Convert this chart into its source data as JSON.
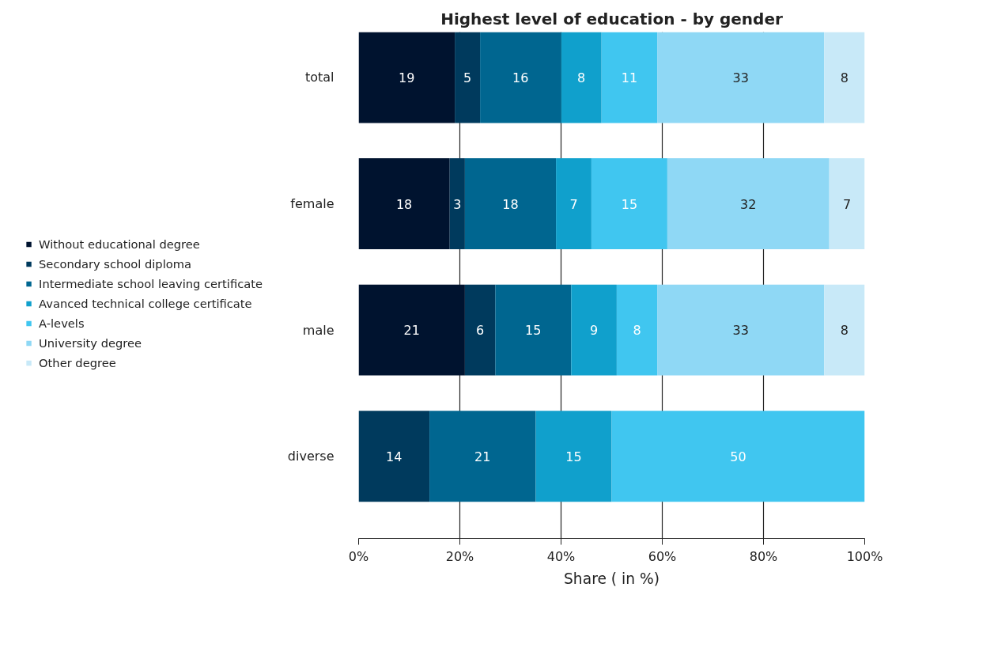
{
  "chart_data": {
    "type": "bar",
    "orientation": "horizontal",
    "stacked": true,
    "title": "Highest level of education - by gender",
    "xlabel": "Share ( in %)",
    "categories": [
      "total",
      "female",
      "male",
      "diverse"
    ],
    "series": [
      {
        "name": "Without educational degree",
        "color": "#00132f",
        "values": [
          19,
          18,
          21,
          null
        ]
      },
      {
        "name": "Secondary school diploma",
        "color": "#003a5d",
        "values": [
          5,
          3,
          6,
          14
        ]
      },
      {
        "name": "Intermediate school leaving certificate",
        "color": "#006690",
        "values": [
          16,
          18,
          15,
          21
        ]
      },
      {
        "name": "Avanced technical college certificate",
        "color": "#10a0cc",
        "values": [
          8,
          7,
          9,
          15
        ]
      },
      {
        "name": "A-levels",
        "color": "#40c6f0",
        "values": [
          11,
          15,
          8,
          50
        ]
      },
      {
        "name": "University degree",
        "color": "#8fd8f5",
        "values": [
          33,
          32,
          33,
          null
        ]
      },
      {
        "name": "Other degree",
        "color": "#c8e9f8",
        "values": [
          8,
          7,
          8,
          null
        ]
      }
    ],
    "xlim": [
      0,
      100
    ],
    "xticks": [
      {
        "value": 0,
        "label": "0%"
      },
      {
        "value": 20,
        "label": "20%"
      },
      {
        "value": 40,
        "label": "40%"
      },
      {
        "value": 60,
        "label": "60%"
      },
      {
        "value": 80,
        "label": "80%"
      },
      {
        "value": 100,
        "label": "100%"
      }
    ],
    "grid": "x",
    "legend": "left",
    "data_labels": true
  }
}
